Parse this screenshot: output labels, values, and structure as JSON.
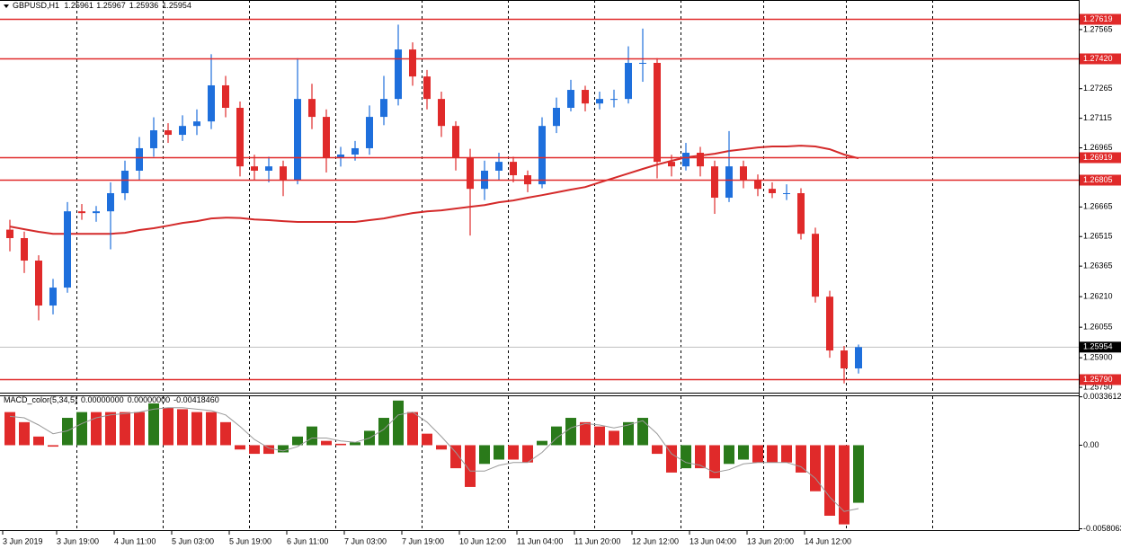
{
  "chart_data": [
    {
      "type": "candlestick",
      "title": "GBPUSD,H1",
      "quote": [
        1.25961,
        1.25967,
        1.25936,
        1.25954
      ],
      "x": [
        2,
        6,
        10,
        14,
        18,
        22,
        26,
        30,
        34,
        38,
        42,
        46,
        50,
        54,
        58,
        62,
        66,
        70,
        74,
        78,
        82,
        86,
        90,
        94,
        98,
        102,
        106,
        110,
        114,
        118,
        122,
        126,
        130,
        134,
        138,
        142,
        146,
        150,
        154,
        158,
        162,
        166,
        170,
        174,
        178,
        182,
        186,
        190,
        194,
        198,
        202,
        206,
        210,
        214,
        218,
        222,
        226,
        230,
        234,
        238
      ],
      "open": [
        1.2655,
        1.26507,
        1.26393,
        1.26165,
        1.26256,
        1.26643,
        1.26634,
        1.26643,
        1.26735,
        1.26849,
        1.26963,
        1.27054,
        1.27031,
        1.27076,
        1.27099,
        1.27282,
        1.27168,
        1.26871,
        1.26849,
        1.26871,
        1.26803,
        1.27213,
        1.27122,
        1.26917,
        1.26931,
        1.26963,
        1.27122,
        1.27213,
        1.27464,
        1.27327,
        1.27213,
        1.27076,
        1.26917,
        1.26757,
        1.26849,
        1.26894,
        1.26826,
        1.2678,
        1.27076,
        1.27168,
        1.27259,
        1.2719,
        1.27213,
        1.27213,
        1.27396,
        1.27396,
        1.26894,
        1.26871,
        1.2694,
        1.26871,
        1.26712,
        1.26871,
        1.26803,
        1.26757,
        1.26735,
        1.26735,
        1.26529,
        1.2621,
        1.25937,
        1.25846
      ],
      "high": [
        1.266,
        1.2654,
        1.2642,
        1.263,
        1.2669,
        1.2668,
        1.2667,
        1.2679,
        1.269,
        1.2702,
        1.2712,
        1.2709,
        1.2713,
        1.2716,
        1.2744,
        1.2733,
        1.272,
        1.2693,
        1.2692,
        1.269,
        1.2742,
        1.2729,
        1.2716,
        1.2697,
        1.27,
        1.2718,
        1.2733,
        1.2759,
        1.275,
        1.2736,
        1.2725,
        1.271,
        1.2696,
        1.269,
        1.2694,
        1.2692,
        1.2685,
        1.2712,
        1.2722,
        1.2731,
        1.2728,
        1.2725,
        1.2726,
        1.2748,
        1.2757,
        1.2742,
        1.2693,
        1.2699,
        1.2697,
        1.269,
        1.2705,
        1.269,
        1.2683,
        1.2679,
        1.2678,
        1.2676,
        1.2656,
        1.2624,
        1.2596,
        1.25967
      ],
      "low": [
        1.2644,
        1.2633,
        1.2609,
        1.2612,
        1.2623,
        1.266,
        1.2659,
        1.2645,
        1.267,
        1.268,
        1.2692,
        1.2699,
        1.27,
        1.2703,
        1.2706,
        1.2712,
        1.2682,
        1.268,
        1.2679,
        1.2672,
        1.2678,
        1.2706,
        1.2684,
        1.2687,
        1.269,
        1.2693,
        1.2708,
        1.2718,
        1.2728,
        1.2716,
        1.2702,
        1.2685,
        1.2652,
        1.267,
        1.268,
        1.2679,
        1.2674,
        1.2676,
        1.2704,
        1.2715,
        1.2715,
        1.2716,
        1.2717,
        1.2719,
        1.273,
        1.2681,
        1.2682,
        1.2685,
        1.2682,
        1.2663,
        1.2669,
        1.2676,
        1.2672,
        1.2671,
        1.267,
        1.265,
        1.2618,
        1.259,
        1.2577,
        1.2582
      ],
      "close": [
        1.26507,
        1.26393,
        1.26165,
        1.26256,
        1.26643,
        1.26634,
        1.26643,
        1.26735,
        1.26849,
        1.26963,
        1.27054,
        1.27031,
        1.27076,
        1.27099,
        1.27282,
        1.27168,
        1.26871,
        1.26849,
        1.26871,
        1.26803,
        1.27213,
        1.27122,
        1.26917,
        1.26931,
        1.26963,
        1.27122,
        1.27213,
        1.27464,
        1.27327,
        1.27213,
        1.27076,
        1.26917,
        1.26757,
        1.26849,
        1.26894,
        1.26826,
        1.2678,
        1.27076,
        1.27168,
        1.27259,
        1.2719,
        1.27213,
        1.27213,
        1.27396,
        1.27396,
        1.26894,
        1.26871,
        1.2694,
        1.26871,
        1.26712,
        1.26871,
        1.26803,
        1.26757,
        1.26735,
        1.26735,
        1.26529,
        1.2621,
        1.25937,
        1.25846,
        1.25954
      ],
      "up_color": "#1e6fdc",
      "down_color": "#e02a2a",
      "ma": {
        "color": "#d42a2a",
        "values": [
          1.26566,
          1.26552,
          1.26539,
          1.26529,
          1.26529,
          1.26529,
          1.26529,
          1.26529,
          1.26534,
          1.26548,
          1.26557,
          1.2657,
          1.26584,
          1.26593,
          1.26607,
          1.26611,
          1.26609,
          1.26602,
          1.26598,
          1.26593,
          1.26589,
          1.26589,
          1.26589,
          1.26589,
          1.26589,
          1.26598,
          1.26607,
          1.26621,
          1.26634,
          1.26643,
          1.26648,
          1.26657,
          1.26666,
          1.26675,
          1.26689,
          1.26698,
          1.26712,
          1.26725,
          1.26739,
          1.26753,
          1.26766,
          1.26789,
          1.26812,
          1.26835,
          1.26858,
          1.2688,
          1.26899,
          1.26917,
          1.26926,
          1.26935,
          1.26949,
          1.26958,
          1.26967,
          1.26972,
          1.26972,
          1.26976,
          1.26972,
          1.26958,
          1.26931,
          1.26912
        ]
      },
      "xlim": [
        -0.75,
        299.25
      ],
      "xticks": [
        {
          "value": 0,
          "label": "3 Jun 2019"
        },
        {
          "value": 15,
          "label": "3 Jun 19:00"
        },
        {
          "value": 31,
          "label": "4 Jun 11:00"
        },
        {
          "value": 47,
          "label": "5 Jun 03:00"
        },
        {
          "value": 63,
          "label": "5 Jun 19:00"
        },
        {
          "value": 79,
          "label": "6 Jun 11:00"
        },
        {
          "value": 95,
          "label": "7 Jun 03:00"
        },
        {
          "value": 111,
          "label": "7 Jun 19:00"
        },
        {
          "value": 127,
          "label": "10 Jun 12:00"
        },
        {
          "value": 143,
          "label": "11 Jun 04:00"
        },
        {
          "value": 159,
          "label": "11 Jun 20:00"
        },
        {
          "value": 175,
          "label": "12 Jun 12:00"
        },
        {
          "value": 191,
          "label": "13 Jun 04:00"
        },
        {
          "value": 207,
          "label": "13 Jun 20:00"
        },
        {
          "value": 223,
          "label": "14 Jun 12:00"
        }
      ],
      "xgrid": [
        20.5,
        44.5,
        68.5,
        92.5,
        116.5,
        140.5,
        164.5,
        188.5,
        211.5,
        234.5,
        258.5
      ],
      "ylim": [
        1.25723,
        1.27715
      ],
      "yticks": [
        1.27565,
        1.27265,
        1.27115,
        1.26965,
        1.26665,
        1.26515,
        1.26365,
        {
          "value": 1.2621,
          "label": "1.26210"
        },
        1.26055,
        {
          "value": 1.259,
          "label": "1.25900"
        },
        {
          "value": 1.2575,
          "label": "1.25750"
        }
      ],
      "levels": [
        1.27619,
        {
          "value": 1.2742,
          "label": "1.27420"
        },
        1.26919,
        1.26805,
        {
          "value": 1.2579,
          "label": "1.25790"
        }
      ],
      "level_color": "#e02a2a",
      "current_price": 1.25954,
      "grid": true
    },
    {
      "type": "bar",
      "title": "MACD_color(5,34,5)",
      "title_values": [
        "0.00000000",
        "0.00000000",
        "-0.00418460"
      ],
      "x": [
        2,
        6,
        10,
        14,
        18,
        22,
        26,
        30,
        34,
        38,
        42,
        46,
        50,
        54,
        58,
        62,
        66,
        70,
        74,
        78,
        82,
        86,
        90,
        94,
        98,
        102,
        106,
        110,
        114,
        118,
        122,
        126,
        130,
        134,
        138,
        142,
        146,
        150,
        154,
        158,
        162,
        166,
        170,
        174,
        178,
        182,
        186,
        190,
        194,
        198,
        202,
        206,
        210,
        214,
        218,
        222,
        226,
        230,
        234,
        238
      ],
      "values": [
        0.0023,
        0.0016,
        0.0006,
        -0.0001,
        0.0019,
        0.0023,
        0.0023,
        0.0023,
        0.0023,
        0.0023,
        0.0029,
        0.0026,
        0.0025,
        0.0023,
        0.0023,
        0.0016,
        -0.0003,
        -0.0006,
        -0.0006,
        -0.0005,
        0.0006,
        0.0013,
        0.0003,
        0.0001,
        0.0002,
        0.001,
        0.0019,
        0.0031,
        0.0023,
        0.0008,
        -0.0003,
        -0.0016,
        -0.0029,
        -0.0013,
        -0.001,
        -0.001,
        -0.0012,
        0.0003,
        0.0013,
        0.0019,
        0.0016,
        0.0013,
        0.001,
        0.0016,
        0.0019,
        -0.0006,
        -0.0019,
        -0.0016,
        -0.0016,
        -0.0023,
        -0.0013,
        -0.001,
        -0.0012,
        -0.0012,
        -0.0012,
        -0.0019,
        -0.0032,
        -0.0049,
        -0.0055,
        -0.004
      ],
      "signal": {
        "color": "#9a9a9a",
        "values": [
          0.002,
          0.0019,
          0.0014,
          0.0008,
          0.001,
          0.0015,
          0.0019,
          0.0021,
          0.0022,
          0.0023,
          0.0025,
          0.0026,
          0.0026,
          0.0025,
          0.0024,
          0.0021,
          0.0013,
          0.0004,
          -0.0002,
          -0.0004,
          -0.0001,
          0.0005,
          0.0005,
          0.0003,
          0.0002,
          0.0005,
          0.0011,
          0.0021,
          0.0023,
          0.0016,
          0.0006,
          -0.0005,
          -0.0018,
          -0.0018,
          -0.0014,
          -0.0012,
          -0.0012,
          -0.0005,
          0.0005,
          0.0012,
          0.0015,
          0.0014,
          0.0012,
          0.0014,
          0.0017,
          0.0008,
          -0.0006,
          -0.0012,
          -0.0014,
          -0.0019,
          -0.0017,
          -0.0013,
          -0.0012,
          -0.0012,
          -0.0012,
          -0.0015,
          -0.0023,
          -0.0036,
          -0.0046,
          -0.0044
        ]
      },
      "up_color": "#2a7a1a",
      "down_color": "#e02a2a",
      "xlim": [
        -0.75,
        299.25
      ],
      "ylim": [
        -0.0059,
        0.0034
      ],
      "yticks": [
        0.0033612,
        {
          "value": 0,
          "label": "0.00"
        },
        -0.0058063
      ]
    }
  ]
}
